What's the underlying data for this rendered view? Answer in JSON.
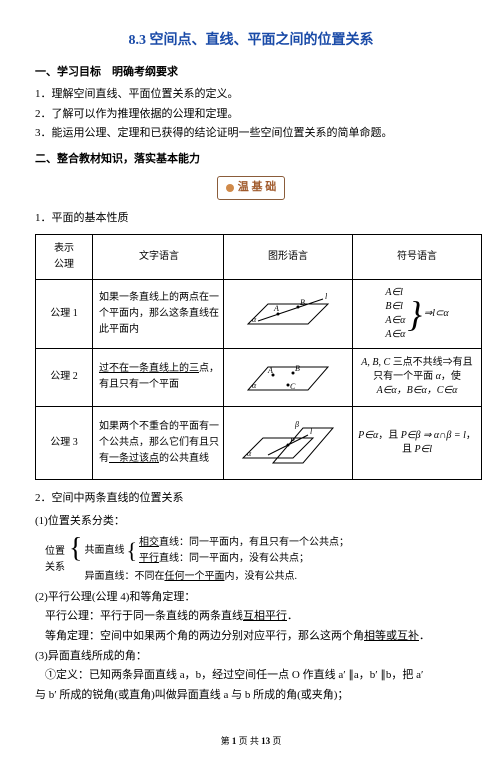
{
  "title": "8.3 空间点、直线、平面之间的位置关系",
  "section1_head": "一、学习目标　明确考纲要求",
  "goals": [
    "1．理解空间直线、平面位置关系的定义。",
    "2．了解可以作为推理依据的公理和定理。",
    "3．能运用公理、定理和已获得的结论证明一些空间位置关系的简单命题。"
  ],
  "section2_head": "二、整合教材知识，落实基本能力",
  "badge": "温 基 础",
  "sub1": "1．平面的基本性质",
  "table": {
    "header": {
      "c0": "表示\n公理",
      "c1": "文字语言",
      "c2": "图形语言",
      "c3": "符号语言"
    },
    "rows": [
      {
        "name": "公理 1",
        "text": "如果一条直线上的两点在一个平面内，那么这条直线在此平面内",
        "sym_lines": [
          "A∈l",
          "B∈l",
          "A∈α",
          "A∈α"
        ],
        "sym_tail": "⇒l⊂α"
      },
      {
        "name": "公理 2",
        "text_html": "<span class='underline'>过不在一条直线上的三</span>点，有且只有一个平面",
        "sym_html": "<span class='math'>A, B, C</span> 三点不共线⇒有且只有一个平面 <span class='math'>α</span>，使 <span class='math'>A∈α，B∈α，C∈α</span>"
      },
      {
        "name": "公理 3",
        "text_html": "如果两个不重合的平面有一个公共点，那么它们有且只有<span class='underline'>一条过该点</span>的公共直线",
        "sym_html": "<span class='math'>P∈α</span>，且 <span class='math'>P∈β ⇒ α∩β = l</span>，且 <span class='math'>P∈l</span>"
      }
    ]
  },
  "sub2": "2．空间中两条直线的位置关系",
  "rel_head": "(1)位置关系分类：",
  "rel": {
    "left_top": "位置",
    "left_bot": "关系",
    "cop_label": "共面直线",
    "cop_a_html": "<span class='underline'>相交</span>直线：同一平面内，有且只有一个公共点；",
    "cop_b_html": "<span class='underline'>平行</span>直线：同一平面内，没有公共点；",
    "skew_html": "异面直线：不同在<span class='underline'>任何一个平面</span>内，没有公共点."
  },
  "para_axiom_head": "(2)平行公理(公理 4)和等角定理：",
  "para_axiom_html": "平行公理：平行于同一条直线的两条直线<span class='underline'>互相平行</span>．",
  "angle_thm_html": "等角定理：空间中如果两个角的两边分别对应平行，那么这两个角<span class='underline'>相等或互补</span>．",
  "skew_head": "(3)异面直线所成的角：",
  "skew_def": "①定义：已知两条异面直线 a，b，经过空间任一点 O 作直线 a′ ∥a，b′ ∥b，把 a′",
  "skew_def2": "与 b′ 所成的锐角(或直角)叫做异面直线 a 与 b 所成的角(或夹角)；",
  "footer_html": "第 <b>1</b> 页 共 <b>13</b> 页"
}
